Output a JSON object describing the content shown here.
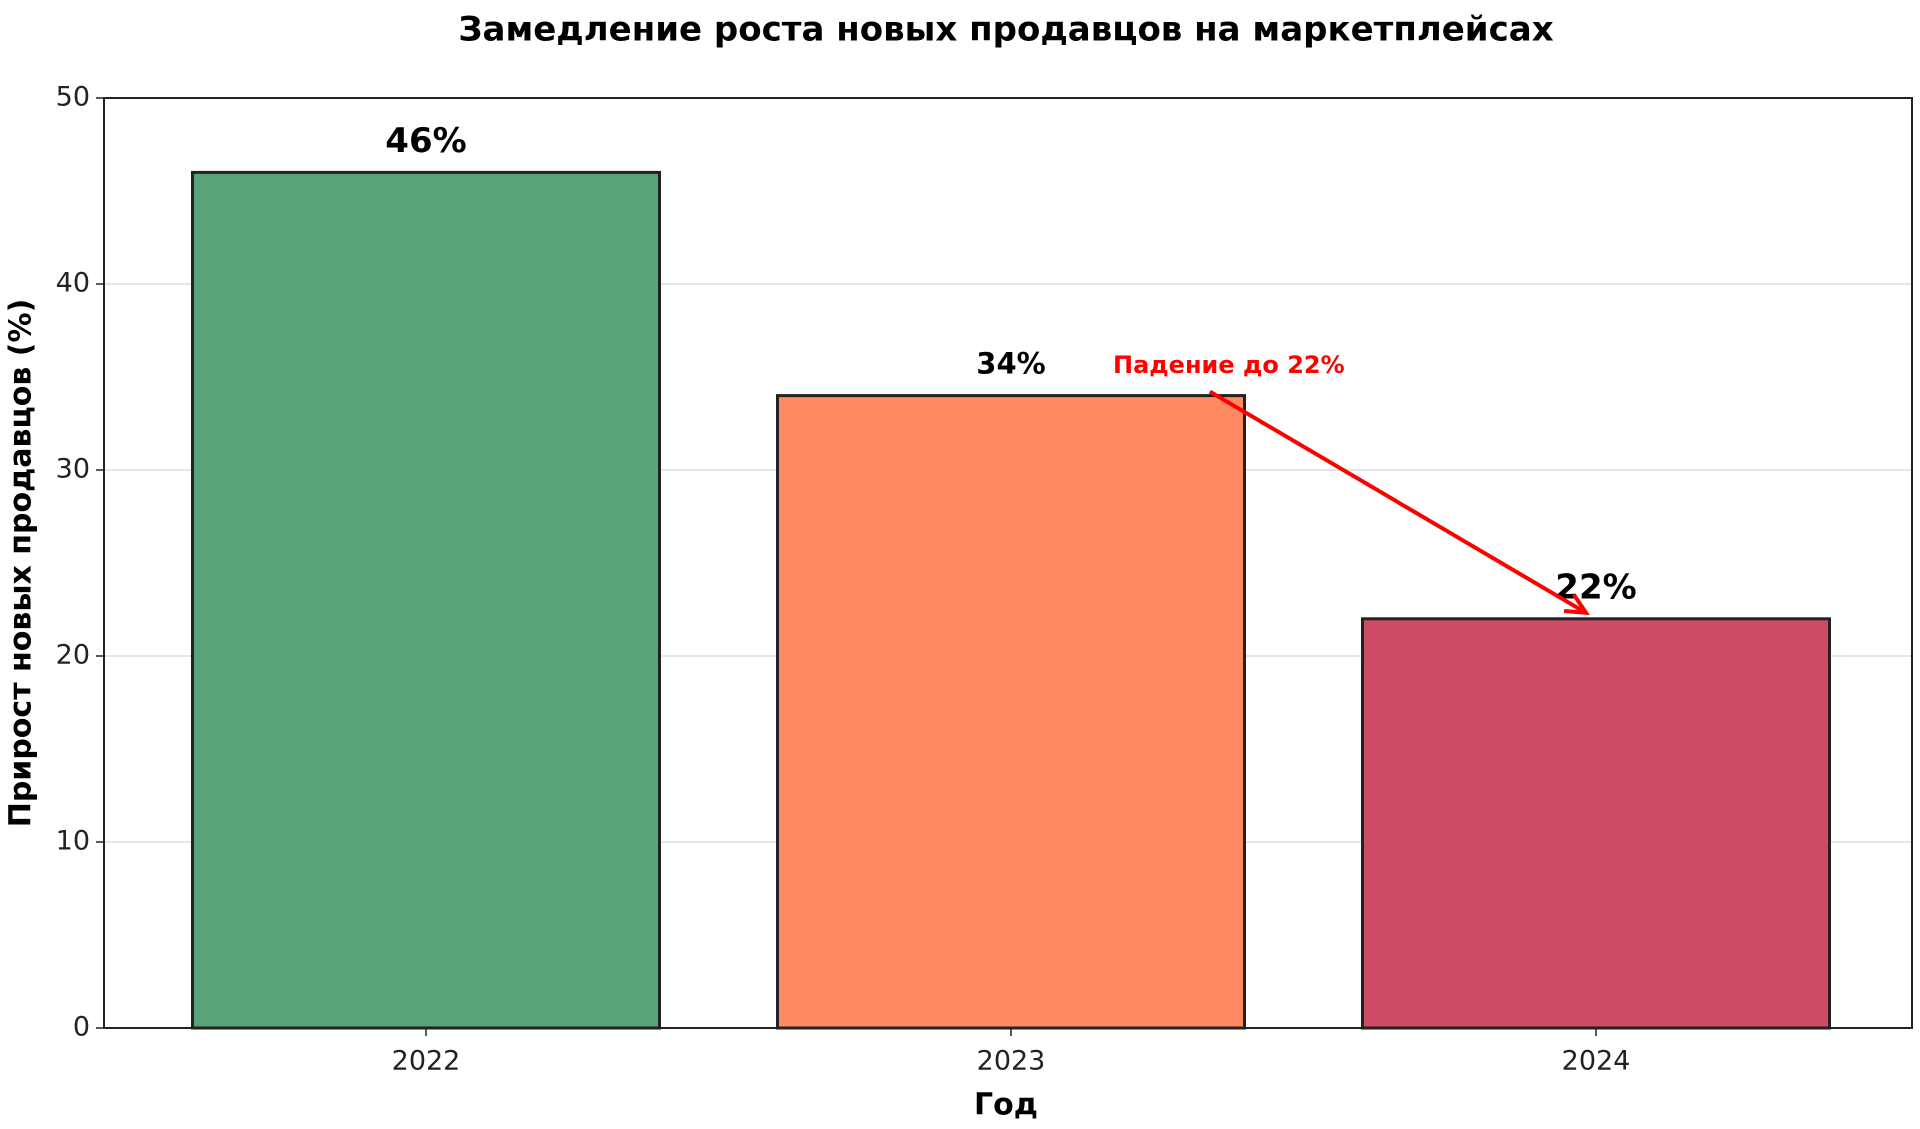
{
  "chart_data": {
    "type": "bar",
    "title": "Замедление роста новых продавцов на маркетплейсах",
    "x_label": "Год",
    "y_label": "Прирост новых продавцов (%)",
    "categories": [
      "2022",
      "2023",
      "2024"
    ],
    "values": [
      46,
      34,
      22
    ],
    "value_labels": [
      "46%",
      "34%",
      "22%"
    ],
    "colors": [
      "#59a37a",
      "#ff8a61",
      "#cd4c63"
    ],
    "ylim": [
      0,
      50
    ],
    "yticks": [
      0,
      10,
      20,
      30,
      40,
      50
    ],
    "grid": true,
    "annotation": "Падение до 22%"
  }
}
